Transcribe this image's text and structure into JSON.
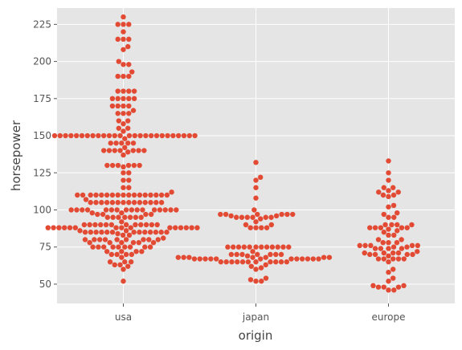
{
  "chart_data": {
    "type": "scatter",
    "subtype": "swarm",
    "title": "",
    "xlabel": "origin",
    "ylabel": "horsepower",
    "categories": [
      "usa",
      "japan",
      "europe"
    ],
    "yticks": [
      50,
      75,
      100,
      125,
      150,
      175,
      200,
      225
    ],
    "ylim": [
      37,
      236
    ],
    "grid": true,
    "background": "#e5e5e5",
    "dot_color": "#e24a33",
    "series": [
      {
        "category": "usa",
        "values": [
          52,
          60,
          62,
          63,
          63,
          65,
          65,
          65,
          68,
          70,
          70,
          70,
          70,
          72,
          72,
          72,
          72,
          75,
          75,
          75,
          75,
          75,
          75,
          75,
          75,
          75,
          78,
          78,
          78,
          78,
          78,
          78,
          80,
          80,
          80,
          80,
          80,
          80,
          80,
          80,
          80,
          81,
          83,
          83,
          84,
          85,
          85,
          85,
          85,
          85,
          85,
          85,
          85,
          85,
          85,
          85,
          85,
          85,
          86,
          86,
          88,
          88,
          88,
          88,
          88,
          88,
          88,
          88,
          88,
          88,
          88,
          88,
          88,
          88,
          88,
          90,
          90,
          90,
          90,
          90,
          90,
          90,
          90,
          90,
          90,
          90,
          90,
          92,
          95,
          95,
          95,
          95,
          95,
          95,
          95,
          97,
          97,
          97,
          97,
          98,
          98,
          100,
          100,
          100,
          100,
          100,
          100,
          100,
          100,
          100,
          100,
          100,
          100,
          100,
          100,
          100,
          100,
          105,
          105,
          105,
          105,
          105,
          105,
          105,
          105,
          105,
          105,
          105,
          105,
          105,
          105,
          107,
          110,
          110,
          110,
          110,
          110,
          110,
          110,
          110,
          110,
          110,
          110,
          110,
          110,
          110,
          110,
          110,
          110,
          112,
          115,
          115,
          120,
          120,
          125,
          125,
          129,
          130,
          130,
          130,
          130,
          130,
          130,
          137,
          139,
          140,
          140,
          140,
          140,
          140,
          140,
          140,
          142,
          145,
          145,
          145,
          145,
          145,
          148,
          150,
          150,
          150,
          150,
          150,
          150,
          150,
          150,
          150,
          150,
          150,
          150,
          150,
          150,
          150,
          150,
          150,
          150,
          150,
          150,
          150,
          150,
          150,
          150,
          150,
          150,
          153,
          155,
          155,
          158,
          160,
          160,
          165,
          165,
          165,
          167,
          170,
          170,
          170,
          170,
          175,
          175,
          175,
          175,
          175,
          180,
          180,
          180,
          180,
          190,
          190,
          190,
          193,
          198,
          198,
          200,
          208,
          210,
          215,
          215,
          215,
          220,
          225,
          225,
          225,
          230
        ]
      },
      {
        "category": "japan",
        "values": [
          52,
          52,
          53,
          54,
          60,
          61,
          62,
          63,
          65,
          65,
          65,
          65,
          65,
          65,
          65,
          65,
          65,
          65,
          65,
          67,
          67,
          67,
          67,
          67,
          67,
          67,
          67,
          67,
          67,
          67,
          67,
          68,
          68,
          68,
          68,
          68,
          68,
          68,
          69,
          70,
          70,
          70,
          70,
          70,
          70,
          70,
          72,
          75,
          75,
          75,
          75,
          75,
          75,
          75,
          75,
          75,
          75,
          75,
          75,
          88,
          88,
          88,
          88,
          90,
          90,
          92,
          94,
          95,
          95,
          95,
          95,
          95,
          95,
          96,
          96,
          97,
          97,
          97,
          97,
          97,
          97,
          100,
          108,
          115,
          120,
          122,
          132
        ]
      },
      {
        "category": "europe",
        "values": [
          46,
          46,
          48,
          48,
          48,
          49,
          49,
          52,
          54,
          58,
          60,
          65,
          67,
          67,
          67,
          67,
          67,
          69,
          70,
          70,
          70,
          70,
          71,
          71,
          71,
          71,
          72,
          74,
          74,
          74,
          74,
          75,
          75,
          76,
          76,
          76,
          76,
          76,
          78,
          78,
          78,
          80,
          80,
          83,
          83,
          85,
          86,
          87,
          88,
          88,
          88,
          88,
          88,
          90,
          90,
          90,
          90,
          95,
          95,
          97,
          98,
          102,
          103,
          109,
          110,
          110,
          112,
          112,
          113,
          115,
          115,
          120,
          125,
          133
        ]
      }
    ]
  }
}
